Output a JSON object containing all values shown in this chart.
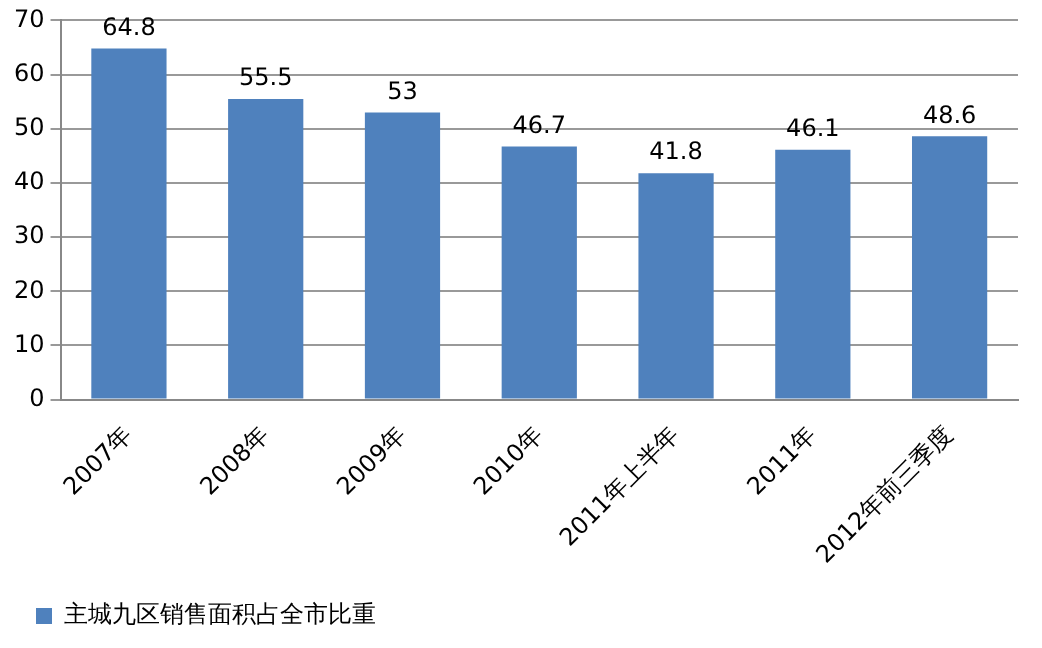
{
  "chart_data": {
    "type": "bar",
    "categories": [
      "2007年",
      "2008年",
      "2009年",
      "2010年",
      "2011年上半年",
      "2011年",
      "2012年前三季度"
    ],
    "series": [
      {
        "name": "主城九区销售面积占全市比重",
        "color": "#4f81bd",
        "values": [
          64.8,
          55.5,
          53,
          46.7,
          41.8,
          46.1,
          48.6
        ]
      }
    ],
    "ylim": [
      0,
      70
    ],
    "yticks": [
      0,
      10,
      20,
      30,
      40,
      50,
      60,
      70
    ],
    "grid": "y",
    "legend": "bottom",
    "data_labels": true
  }
}
